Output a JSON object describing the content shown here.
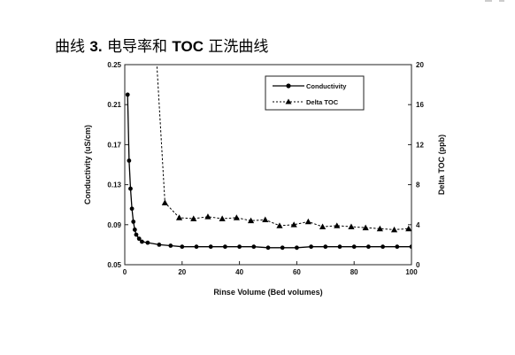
{
  "figure": {
    "prefix": "曲线 ",
    "number": "3.",
    "middle": " 电导率和 ",
    "bold_word": "TOC",
    "suffix": " 正洗曲线"
  },
  "chart_data": {
    "type": "line",
    "xlabel": "Rinse Volume  (Bed volumes)",
    "ylabel": "Conductivity  (uS/cm)",
    "y2label": "Delta TOC  (ppb)",
    "xlim": [
      0,
      100
    ],
    "ylim": [
      0.05,
      0.25
    ],
    "y2lim": [
      0,
      20
    ],
    "xticks": [
      0,
      20,
      40,
      60,
      80,
      100
    ],
    "yticks": [
      0.05,
      0.09,
      0.13,
      0.17,
      0.21,
      0.25
    ],
    "y2ticks": [
      0,
      4,
      8,
      12,
      16,
      20
    ],
    "grid": false,
    "legend_position": "top-right",
    "series": [
      {
        "name": "Conductivity",
        "axis": "left",
        "marker": "circle",
        "line": "solid",
        "color": "#000000",
        "x": [
          1,
          1.5,
          2,
          2.5,
          3,
          3.5,
          4,
          5,
          6,
          8,
          12,
          16,
          20,
          25,
          30,
          35,
          40,
          45,
          50,
          55,
          60,
          65,
          70,
          75,
          80,
          85,
          90,
          95,
          100
        ],
        "y": [
          0.22,
          0.154,
          0.126,
          0.106,
          0.093,
          0.085,
          0.08,
          0.076,
          0.073,
          0.072,
          0.07,
          0.069,
          0.068,
          0.068,
          0.068,
          0.068,
          0.068,
          0.068,
          0.067,
          0.067,
          0.067,
          0.068,
          0.068,
          0.068,
          0.068,
          0.068,
          0.068,
          0.068,
          0.068
        ]
      },
      {
        "name": "Delta TOC",
        "axis": "right",
        "marker": "triangle",
        "line": "dashed",
        "color": "#000000",
        "x": [
          11,
          14,
          19,
          24,
          29,
          34,
          39,
          44,
          49,
          54,
          59,
          64,
          69,
          74,
          79,
          84,
          89,
          94,
          99
        ],
        "y": [
          21,
          6.2,
          4.7,
          4.6,
          4.8,
          4.6,
          4.7,
          4.4,
          4.5,
          3.9,
          4.0,
          4.3,
          3.8,
          3.9,
          3.8,
          3.7,
          3.6,
          3.5,
          3.6
        ]
      }
    ]
  }
}
